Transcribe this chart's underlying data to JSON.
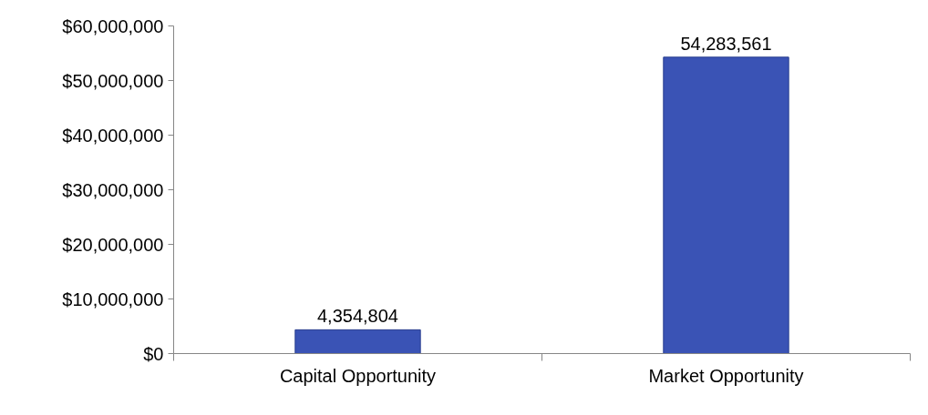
{
  "chart_data": {
    "type": "bar",
    "categories": [
      "Capital Opportunity",
      "Market Opportunity"
    ],
    "values": [
      4354804,
      54283561
    ],
    "color": "#3a53b5",
    "ylim": [
      0,
      60000000
    ],
    "yticks": [
      {
        "value": 0,
        "label": "$0"
      },
      {
        "value": 10000000,
        "label": "$10,000,000"
      },
      {
        "value": 20000000,
        "label": "$20,000,000"
      },
      {
        "value": 30000000,
        "label": "$30,000,000"
      },
      {
        "value": 40000000,
        "label": "$40,000,000"
      },
      {
        "value": 50000000,
        "label": "$50,000,000"
      },
      {
        "value": 60000000,
        "label": "$60,000,000"
      }
    ],
    "value_labels": [
      "4,354,804",
      "54,283,561"
    ],
    "grid": false
  }
}
